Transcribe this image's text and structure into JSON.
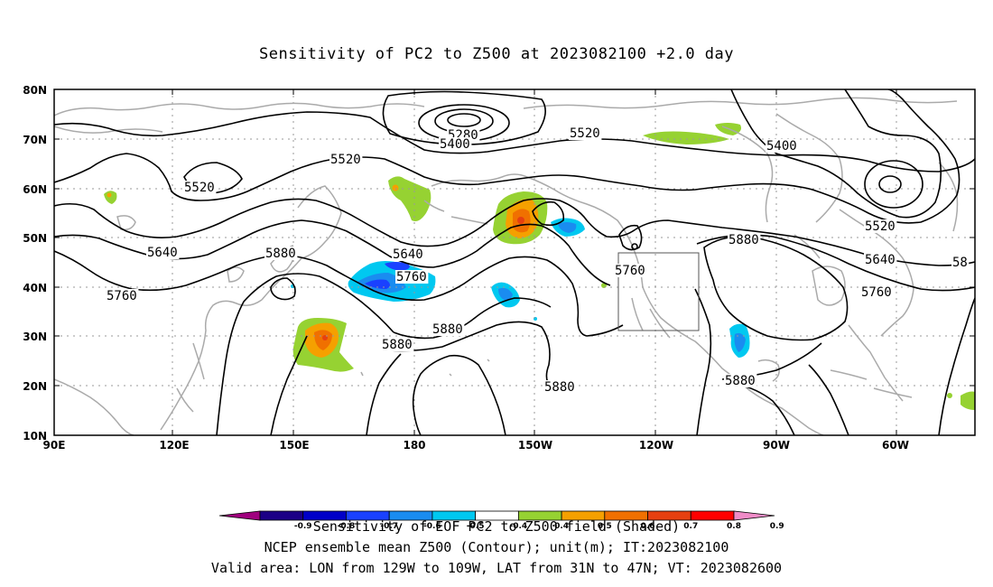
{
  "title": "Sensitivity of PC2 to Z500 at 2023082100 +2.0 day",
  "lat_labels": [
    "80N",
    "70N",
    "60N",
    "50N",
    "40N",
    "30N",
    "20N",
    "10N"
  ],
  "lon_labels": [
    "90E",
    "120E",
    "150E",
    "180",
    "150W",
    "120W",
    "90W",
    "60W"
  ],
  "contour_labels": [
    {
      "id": "c5280",
      "text": "5280"
    },
    {
      "id": "c5400a",
      "text": "5400"
    },
    {
      "id": "c5400b",
      "text": "5400"
    },
    {
      "id": "c5520a",
      "text": "5520"
    },
    {
      "id": "c5520b",
      "text": "5520"
    },
    {
      "id": "c5520c",
      "text": "5520"
    },
    {
      "id": "c5520d",
      "text": "5520"
    },
    {
      "id": "c5640a",
      "text": "5640"
    },
    {
      "id": "c5640b",
      "text": "5640"
    },
    {
      "id": "c5640c",
      "text": "5640"
    },
    {
      "id": "c5760a",
      "text": "5760"
    },
    {
      "id": "c5760b",
      "text": "5760"
    },
    {
      "id": "c5760c",
      "text": "5760"
    },
    {
      "id": "c5760d",
      "text": "5760"
    },
    {
      "id": "c5880a",
      "text": "5880"
    },
    {
      "id": "c5880b",
      "text": "5880"
    },
    {
      "id": "c5880c",
      "text": "5880"
    },
    {
      "id": "c5880d",
      "text": "5880"
    },
    {
      "id": "c5880e",
      "text": "5880"
    },
    {
      "id": "c5880f",
      "text": "5880"
    },
    {
      "id": "c58x",
      "text": "58"
    }
  ],
  "colorbar": {
    "colors": [
      "#a0007e",
      "#1b0086",
      "#0000c8",
      "#1a41ff",
      "#1a8cf0",
      "#00c8f0",
      "#ffffff",
      "#96d232",
      "#f5a000",
      "#f07000",
      "#e64010",
      "#ff0000",
      "#f08cc8"
    ],
    "ticks": [
      "-0.9",
      "-0.8",
      "-0.7",
      "-0.6",
      "-0.5",
      "-0.4",
      "0.4",
      "0.5",
      "0.6",
      "0.7",
      "0.8",
      "0.9"
    ]
  },
  "captions": [
    "Sensitivity of EOF PC2 to Z500 field (Shaded)",
    "NCEP ensemble mean Z500 (Contour); unit(m); IT:2023082100",
    "Valid area: LON from 129W to 109W, LAT from 31N to 47N; VT: 2023082600"
  ],
  "colors": {
    "contour": "#000000",
    "coastline": "#aaaaaa",
    "grid": "#999999",
    "positive_low": "#96d232",
    "positive_mid": "#f5a000",
    "positive_high": "#e64010",
    "negative_low": "#00c8f0",
    "negative_mid": "#1a8cf0",
    "negative_high": "#1a41ff"
  }
}
